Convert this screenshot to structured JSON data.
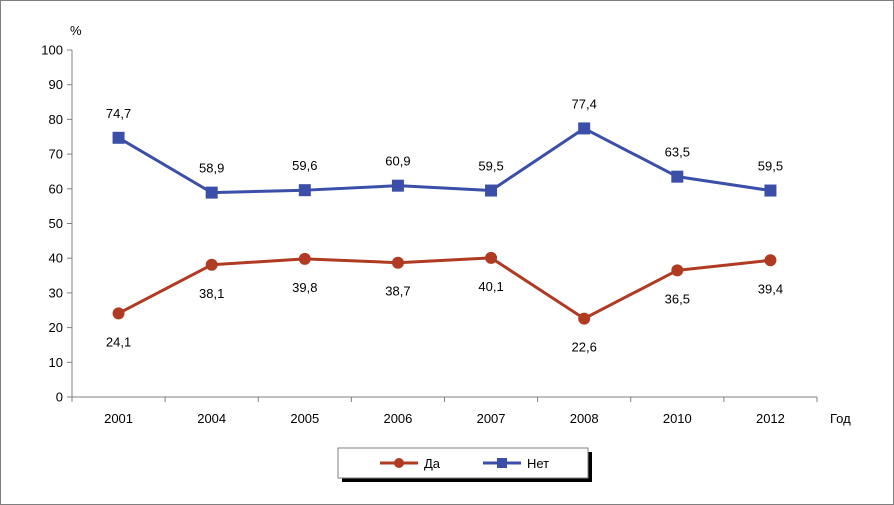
{
  "chart_data": {
    "type": "line",
    "ylabel": "%",
    "xlabel": "Год",
    "categories": [
      "2001",
      "2004",
      "2005",
      "2006",
      "2007",
      "2008",
      "2010",
      "2012"
    ],
    "ylim": [
      0,
      100
    ],
    "yticks": [
      0,
      10,
      20,
      30,
      40,
      50,
      60,
      70,
      80,
      90,
      100
    ],
    "series": [
      {
        "name": "Да",
        "color": "#b03a22",
        "marker": "circle",
        "values": [
          24.1,
          38.1,
          39.8,
          38.7,
          40.1,
          22.6,
          36.5,
          39.4
        ],
        "labels": [
          "24,1",
          "38,1",
          "39,8",
          "38,7",
          "40,1",
          "22,6",
          "36,5",
          "39,4"
        ]
      },
      {
        "name": "Нет",
        "color": "#3b4fa8",
        "marker": "square",
        "values": [
          74.7,
          58.9,
          59.6,
          60.9,
          59.5,
          77.4,
          63.5,
          59.5
        ],
        "labels": [
          "74,7",
          "58,9",
          "59,6",
          "60,9",
          "59,5",
          "77,4",
          "63,5",
          "59,5"
        ]
      }
    ],
    "grid": false,
    "legend": "bottom-center"
  }
}
